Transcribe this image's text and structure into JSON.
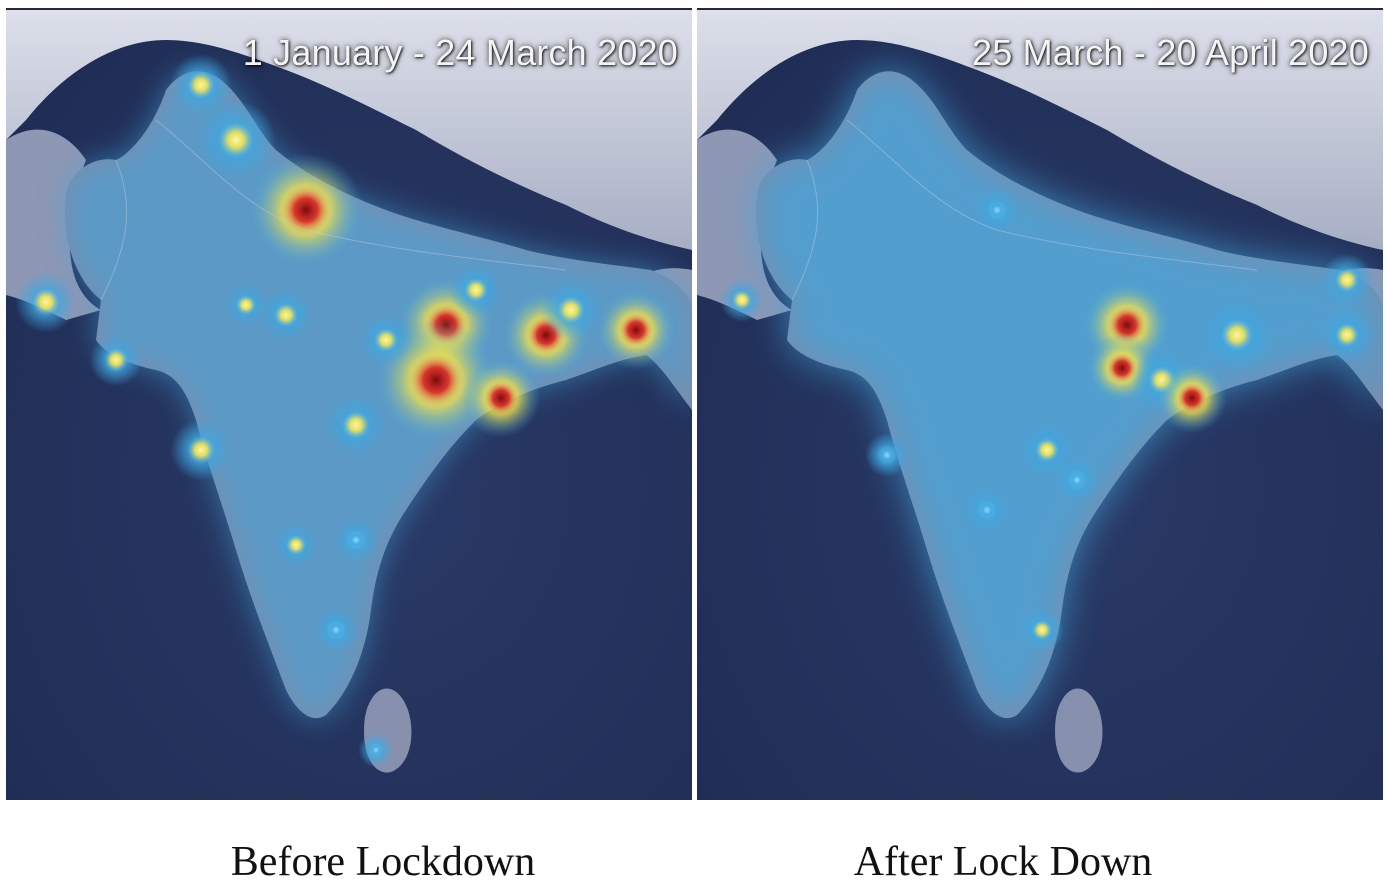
{
  "panels": [
    {
      "date_range": "1 January - 24 March 2020",
      "caption": "Before Lockdown",
      "intensity": "high"
    },
    {
      "date_range": "25 March - 20 April 2020",
      "caption": "After Lock Down",
      "intensity": "low"
    }
  ],
  "colors": {
    "ocean": "#1f2d55",
    "land": "#7f8aa8",
    "mountains": "#c9cede",
    "glow_low": "#3fa7e0",
    "glow_mid": "#f3e24a",
    "glow_high": "#d8181c"
  }
}
